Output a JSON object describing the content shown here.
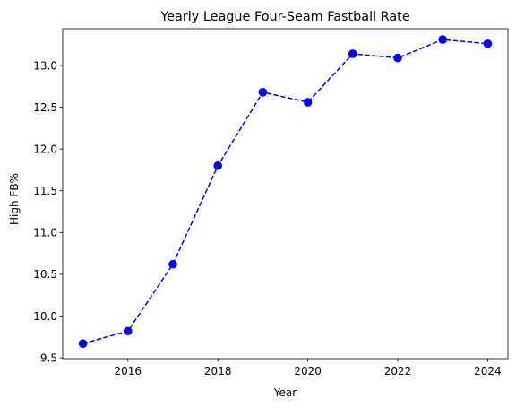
{
  "chart_data": {
    "type": "line",
    "title": "Yearly League Four-Seam Fastball Rate",
    "xlabel": "Year",
    "ylabel": "High FB%",
    "xlim": [
      2014.55,
      2024.45
    ],
    "ylim": [
      9.49,
      13.44
    ],
    "xticks": [
      2016,
      2018,
      2020,
      2022,
      2024
    ],
    "yticks": [
      9.5,
      10.0,
      10.5,
      11.0,
      11.5,
      12.0,
      12.5,
      13.0
    ],
    "ytick_labels": [
      "9.5",
      "10.0",
      "10.5",
      "11.0",
      "11.5",
      "12.0",
      "12.5",
      "13.0"
    ],
    "grid": false,
    "legend": false,
    "series": [
      {
        "color": "#0000ff",
        "line_style": "dashed",
        "marker": "circle",
        "x": [
          2015,
          2016,
          2017,
          2018,
          2019,
          2020,
          2021,
          2022,
          2023,
          2024
        ],
        "y": [
          9.67,
          9.82,
          10.62,
          11.8,
          12.68,
          12.56,
          13.14,
          13.09,
          13.31,
          13.26
        ]
      }
    ]
  }
}
